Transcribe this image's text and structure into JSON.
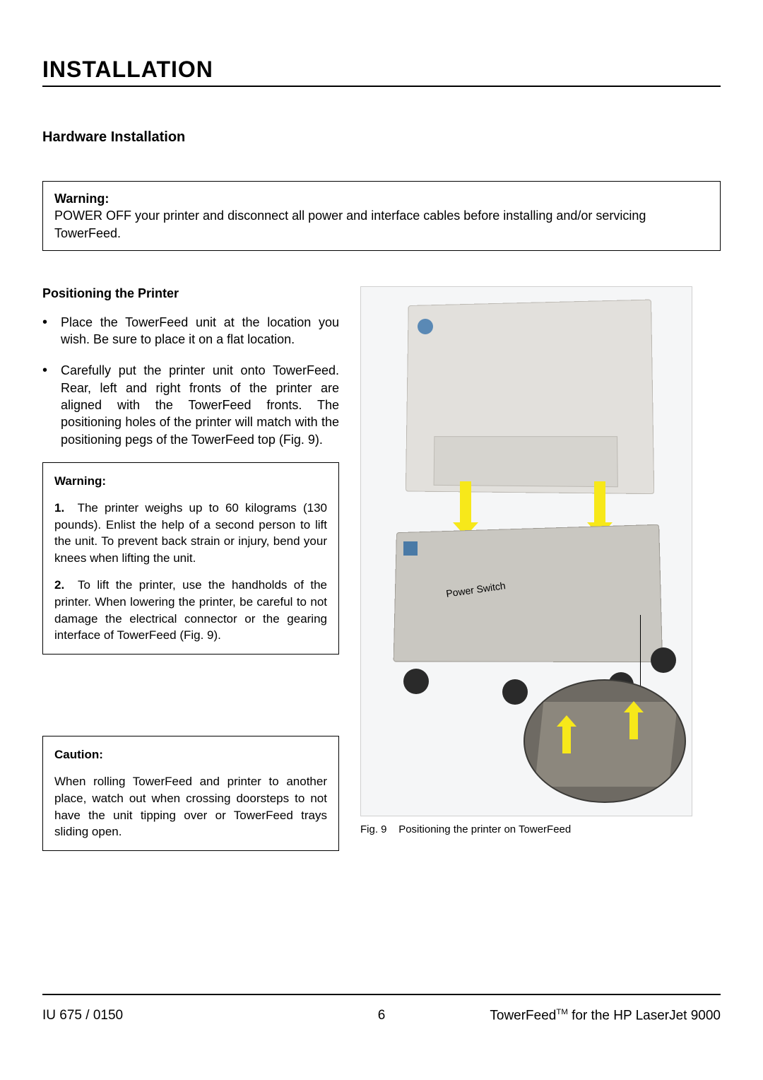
{
  "heading": "INSTALLATION",
  "subheading": "Hardware Installation",
  "topWarning": {
    "label": "Warning:",
    "text": "POWER OFF your printer and disconnect all power and interface cables before installing and/or servicing TowerFeed."
  },
  "positioning": {
    "title": "Positioning the Printer",
    "bullets": [
      "Place the TowerFeed unit at the location you wish. Be sure to place it on a flat location.",
      "Carefully put the printer unit onto TowerFeed. Rear, left and right fronts of the printer are aligned with the TowerFeed fronts. The positioning holes of the printer will match with the positioning pegs of the TowerFeed top (Fig. 9)."
    ]
  },
  "midWarning": {
    "label": "Warning:",
    "p1num": "1.",
    "p1": "The printer weighs up to 60 kilograms (130 pounds). Enlist the help of a second person to lift the unit. To prevent back strain or injury, bend your knees when lifting the unit.",
    "p2num": "2.",
    "p2": "To lift the printer, use the handholds of the printer. When lowering the printer, be careful to not damage the electrical connector or the gearing interface of TowerFeed (Fig. 9)."
  },
  "caution": {
    "label": "Caution:",
    "text": "When rolling TowerFeed and printer to another place, watch out when crossing doorsteps to not have the unit tipping over or TowerFeed trays sliding open."
  },
  "figure": {
    "powerSwitchLabel": "Power Switch",
    "captionPrefix": "Fig. 9",
    "captionText": "Positioning the printer on TowerFeed"
  },
  "footer": {
    "left": "IU 675 / 0150",
    "pageNumber": "6",
    "rightPrefix": "TowerFeed",
    "rightSuffix": " for the HP LaserJet 9000"
  },
  "colors": {
    "text": "#000000",
    "background": "#ffffff",
    "arrow": "#f7e81a",
    "printerBody": "#e2e0dc",
    "towerBody": "#c9c7c1"
  },
  "fonts": {
    "h1_size_pt": 24,
    "h2_size_pt": 15,
    "body_size_pt": 13,
    "caption_size_pt": 11
  }
}
